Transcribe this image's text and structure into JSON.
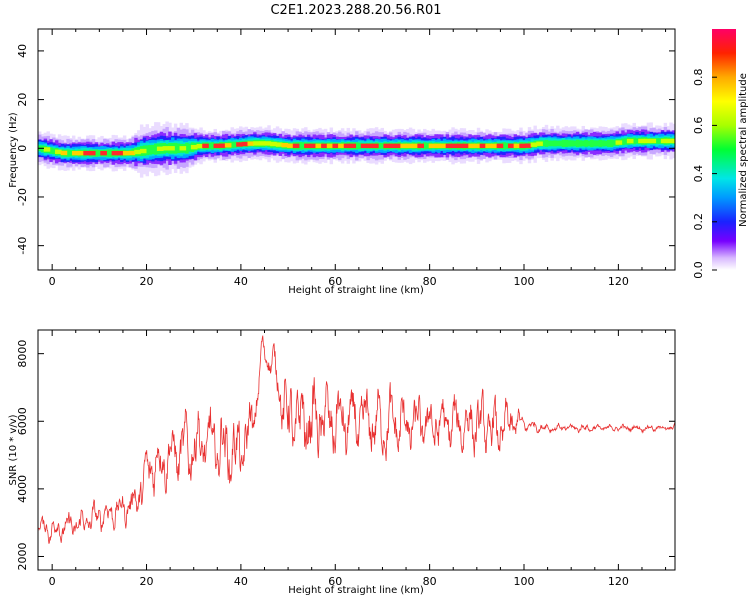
{
  "figure": {
    "title": "C2E1.2023.288.20.56.R01"
  },
  "chart_data": [
    {
      "type": "heatmap",
      "xlabel": "Height of straight line (km)",
      "ylabel": "Frequency (Hz)",
      "xlim": [
        -3,
        132
      ],
      "ylim": [
        -50,
        49
      ],
      "x_ticks": [
        0,
        20,
        40,
        60,
        80,
        100,
        120
      ],
      "y_ticks": [
        40,
        20,
        0,
        -20,
        -40
      ],
      "colorbar": {
        "label": "Normalized spectral amplitude",
        "range": [
          0,
          1
        ],
        "ticks": [
          0.0,
          0.2,
          0.4,
          0.6,
          0.8
        ],
        "colormap": "rainbow (violet to red)"
      },
      "ridge_frequency_hz": {
        "x_km": [
          -3,
          2,
          5,
          16,
          19,
          23,
          28,
          31,
          35,
          42,
          45,
          50,
          60,
          70,
          80,
          90,
          100,
          103,
          110,
          118,
          122,
          132
        ],
        "freq": [
          0,
          -2,
          -2,
          -2,
          -1,
          0,
          0,
          1,
          1,
          2,
          2,
          1,
          1,
          1,
          1,
          1,
          1,
          2,
          2,
          2,
          3,
          3
        ]
      },
      "ridge_halfwidth_hz": {
        "x_km": [
          -3,
          2,
          5,
          16,
          19,
          23,
          28,
          31,
          35,
          42,
          45,
          50,
          60,
          70,
          80,
          90,
          100,
          103,
          110,
          118,
          122,
          132
        ],
        "width": [
          2,
          2,
          2,
          2,
          3,
          3,
          3,
          2,
          2,
          2,
          2,
          2,
          2,
          2,
          2,
          2,
          2,
          2,
          2,
          2,
          2,
          2
        ]
      },
      "ridge_amplitude": {
        "x_km": [
          -3,
          2,
          5,
          16,
          19,
          23,
          28,
          31,
          35,
          42,
          45,
          50,
          60,
          70,
          80,
          90,
          100,
          103,
          110,
          118,
          122,
          132
        ],
        "amp": [
          0.45,
          0.9,
          0.9,
          0.9,
          0.5,
          0.6,
          0.6,
          0.85,
          0.92,
          0.85,
          0.65,
          0.95,
          0.92,
          0.95,
          0.92,
          0.9,
          0.9,
          0.5,
          0.5,
          0.5,
          0.75,
          0.75
        ]
      }
    },
    {
      "type": "line",
      "xlabel": "Height of straight line (km)",
      "ylabel": "SNR (10 * v/v)",
      "xlim": [
        -3,
        132
      ],
      "ylim": [
        1600,
        8700
      ],
      "x_ticks": [
        0,
        20,
        40,
        60,
        80,
        100,
        120
      ],
      "y_ticks": [
        2000,
        4000,
        6000,
        8000
      ],
      "series": [
        {
          "color": "#e83030",
          "envelope": {
            "x_km": [
              -3,
              0,
              5,
              10,
              15,
              18,
              21,
              25,
              30,
              35,
              40,
              43,
              44.5,
              47,
              50,
              60,
              70,
              80,
              90,
              95,
              98,
              100,
              105,
              110,
              120,
              132
            ],
            "center": [
              2900,
              2800,
              2900,
              3200,
              3400,
              3700,
              4700,
              5000,
              5300,
              5300,
              5000,
              6200,
              8100,
              7700,
              6000,
              6000,
              5900,
              5900,
              5900,
              5700,
              6000,
              5900,
              5800,
              5800,
              5800,
              5800
            ],
            "amplitude": [
              300,
              500,
              500,
              500,
              550,
              700,
              1100,
              1000,
              1300,
              1300,
              1300,
              900,
              500,
              600,
              1500,
              1300,
              1200,
              1000,
              1000,
              1000,
              700,
              250,
              150,
              150,
              120,
              120
            ]
          }
        }
      ]
    }
  ],
  "colors": {
    "line": "#e83030",
    "axes": "#000000",
    "background": "#ffffff"
  }
}
